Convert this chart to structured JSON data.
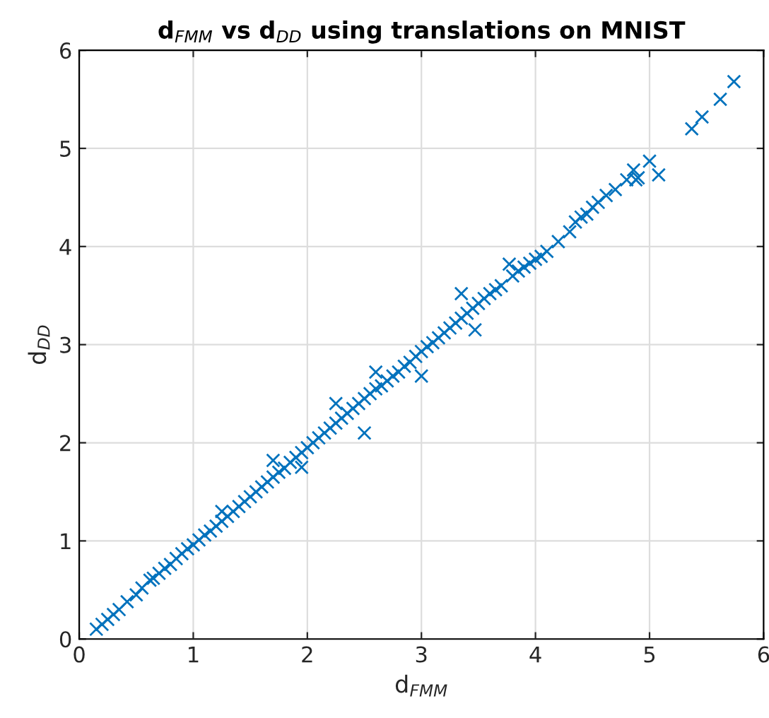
{
  "chart_data": {
    "type": "scatter",
    "title": "d$_{FMM}$ vs d$_{DD}$ using translations on MNIST",
    "xlabel": "d$_{FMM}$",
    "ylabel": "d$_{DD}$",
    "xlim": [
      0,
      6
    ],
    "ylim": [
      0,
      6
    ],
    "xticks": [
      0,
      1,
      2,
      3,
      4,
      5,
      6
    ],
    "yticks": [
      0,
      1,
      2,
      3,
      4,
      5,
      6
    ],
    "grid": true,
    "marker": "cross",
    "series": [
      {
        "color": "#0072bd",
        "x": [
          0.15,
          0.2,
          0.25,
          0.3,
          0.35,
          0.42,
          0.5,
          0.55,
          0.62,
          0.65,
          0.7,
          0.75,
          0.8,
          0.85,
          0.9,
          0.95,
          1.0,
          1.05,
          1.1,
          1.15,
          1.2,
          1.25,
          1.3,
          1.35,
          1.4,
          1.45,
          1.5,
          1.55,
          1.6,
          1.65,
          1.7,
          1.75,
          1.8,
          1.85,
          1.9,
          1.95,
          2.0,
          2.05,
          2.1,
          2.15,
          2.2,
          2.25,
          2.3,
          2.35,
          2.4,
          2.45,
          2.5,
          2.55,
          2.6,
          2.65,
          2.7,
          2.75,
          2.8,
          2.85,
          2.9,
          2.95,
          3.0,
          3.05,
          3.1,
          3.15,
          3.2,
          3.25,
          3.3,
          3.35,
          3.4,
          3.45,
          3.47,
          3.5,
          3.55,
          3.6,
          3.65,
          3.7,
          3.77,
          3.8,
          3.85,
          3.9,
          3.95,
          4.0,
          4.05,
          4.1,
          4.2,
          4.3,
          4.35,
          4.4,
          4.45,
          4.5,
          4.55,
          4.62,
          4.7,
          4.8,
          4.86,
          4.88,
          4.9,
          5.0,
          5.08,
          5.37,
          5.46,
          5.62,
          5.74,
          1.25,
          1.95,
          2.5,
          2.25,
          3.0,
          3.35,
          2.6,
          1.7
        ],
        "values": [
          0.1,
          0.15,
          0.2,
          0.25,
          0.3,
          0.38,
          0.45,
          0.52,
          0.6,
          0.62,
          0.67,
          0.72,
          0.76,
          0.82,
          0.87,
          0.92,
          0.96,
          1.01,
          1.06,
          1.1,
          1.15,
          1.2,
          1.25,
          1.3,
          1.35,
          1.4,
          1.45,
          1.5,
          1.55,
          1.6,
          1.65,
          1.7,
          1.74,
          1.8,
          1.85,
          1.9,
          1.95,
          2.0,
          2.05,
          2.1,
          2.15,
          2.2,
          2.25,
          2.3,
          2.35,
          2.4,
          2.45,
          2.5,
          2.55,
          2.58,
          2.63,
          2.68,
          2.72,
          2.78,
          2.82,
          2.88,
          2.93,
          2.98,
          3.02,
          3.07,
          3.12,
          3.17,
          3.22,
          3.27,
          3.32,
          3.37,
          3.15,
          3.42,
          3.47,
          3.52,
          3.56,
          3.6,
          3.82,
          3.7,
          3.75,
          3.79,
          3.83,
          3.87,
          3.9,
          3.95,
          4.05,
          4.15,
          4.25,
          4.3,
          4.33,
          4.4,
          4.45,
          4.52,
          4.58,
          4.68,
          4.78,
          4.68,
          4.7,
          4.87,
          4.73,
          5.2,
          5.32,
          5.5,
          5.68,
          1.3,
          1.75,
          2.1,
          2.4,
          2.68,
          3.52,
          2.72,
          1.82
        ]
      }
    ]
  }
}
